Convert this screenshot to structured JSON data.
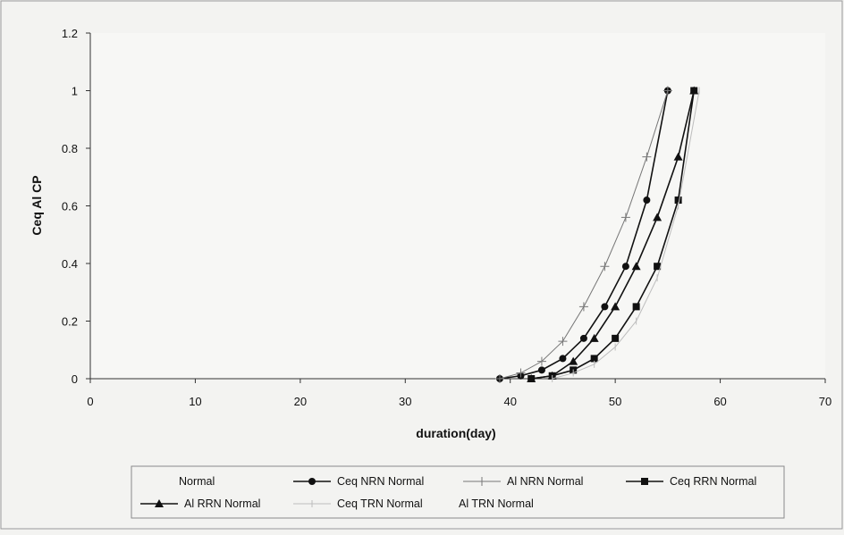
{
  "chart_data": {
    "type": "line",
    "title": "",
    "xlabel": "duration(day)",
    "ylabel": "Ceq Al CP",
    "xlim": [
      0,
      70
    ],
    "ylim": [
      0,
      1.2
    ],
    "xticks": [
      "0",
      "10",
      "20",
      "30",
      "40",
      "50",
      "60",
      "70"
    ],
    "yticks": [
      "0",
      "0.2",
      "0.4",
      "0.6",
      "0.8",
      "1",
      "1.2"
    ],
    "grid": false,
    "legend_position": "bottom",
    "series": [
      {
        "name": "Normal",
        "color": "#ffffff",
        "marker": "none",
        "x": [],
        "y": []
      },
      {
        "name": "Ceq NRN Normal",
        "color": "#111111",
        "marker": "circle",
        "x": [
          39,
          41,
          43,
          45,
          47,
          49,
          51,
          53,
          55
        ],
        "y": [
          0.0,
          0.01,
          0.03,
          0.07,
          0.14,
          0.25,
          0.39,
          0.62,
          1.0
        ]
      },
      {
        "name": "Al NRN Normal",
        "color": "#777777",
        "marker": "plus",
        "x": [
          39,
          41,
          43,
          45,
          47,
          49,
          51,
          53,
          55
        ],
        "y": [
          0.0,
          0.02,
          0.06,
          0.13,
          0.25,
          0.39,
          0.56,
          0.77,
          1.0
        ]
      },
      {
        "name": "Ceq RRN Normal",
        "color": "#111111",
        "marker": "square",
        "x": [
          42,
          44,
          46,
          48,
          50,
          52,
          54,
          56,
          57.5
        ],
        "y": [
          0.0,
          0.01,
          0.03,
          0.07,
          0.14,
          0.25,
          0.39,
          0.62,
          1.0
        ]
      },
      {
        "name": "Al RRN Normal",
        "color": "#111111",
        "marker": "triangle",
        "x": [
          42,
          44,
          46,
          48,
          50,
          52,
          54,
          56,
          57.5
        ],
        "y": [
          0.0,
          0.01,
          0.06,
          0.14,
          0.25,
          0.39,
          0.56,
          0.77,
          1.0
        ]
      },
      {
        "name": "Ceq TRN Normal",
        "color": "#bdbdbd",
        "marker": "tick",
        "x": [
          44,
          46,
          48,
          50,
          52,
          54,
          56,
          58
        ],
        "y": [
          0.0,
          0.02,
          0.05,
          0.11,
          0.2,
          0.35,
          0.6,
          1.0
        ]
      },
      {
        "name": "Al TRN Normal",
        "color": "#ffffff",
        "marker": "none",
        "x": [],
        "y": []
      }
    ]
  }
}
